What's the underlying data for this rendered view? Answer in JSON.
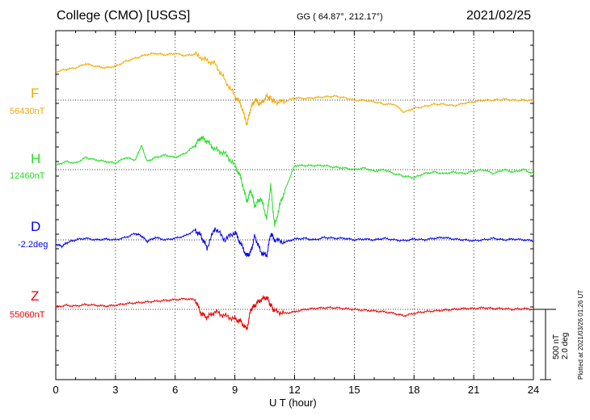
{
  "header": {
    "station": "College (CMO)  [USGS]",
    "coords": "GG ( 64.87°, 212.17°)",
    "date": "2021/02/25"
  },
  "footer": {
    "plotted": "Plotted at 2021/03/26 01:26 UT",
    "scale_nt": "500 nT",
    "scale_deg": "2.0 deg"
  },
  "chart_data": {
    "type": "line",
    "title": "College (CMO)  [USGS]",
    "xlabel": "U T (hour)",
    "ylabel": "",
    "xlim": [
      0,
      24
    ],
    "x_ticks": [
      "0",
      "3",
      "6",
      "9",
      "12",
      "15",
      "18",
      "21",
      "24"
    ],
    "grid": true,
    "series": [
      {
        "name": "F",
        "baseline_label": "56430nT",
        "color": "#f5a800",
        "x": [
          0,
          0.5,
          1,
          1.5,
          2,
          2.5,
          3,
          3.5,
          4,
          4.5,
          5,
          5.5,
          6,
          6.5,
          7,
          7.5,
          8,
          8.5,
          9,
          9.3,
          9.6,
          9.8,
          10,
          10.3,
          10.6,
          10.8,
          11,
          11.5,
          12,
          12.5,
          13,
          13.5,
          14,
          14.5,
          15,
          15.5,
          16,
          16.5,
          17,
          17.5,
          18,
          18.5,
          19,
          19.5,
          20,
          20.5,
          21,
          21.5,
          22,
          22.5,
          23,
          23.5,
          24
        ],
        "y": [
          35,
          38,
          40,
          45,
          42,
          40,
          42,
          48,
          52,
          56,
          58,
          56,
          58,
          55,
          57,
          50,
          45,
          25,
          5,
          -5,
          -30,
          -10,
          0,
          -5,
          5,
          2,
          -2,
          -2,
          3,
          2,
          3,
          4,
          5,
          3,
          0,
          0,
          -2,
          -5,
          -5,
          -15,
          -10,
          -8,
          -5,
          -5,
          -7,
          -4,
          -2,
          0,
          0,
          1,
          0,
          0,
          0
        ]
      },
      {
        "name": "H",
        "baseline_label": "12460nT",
        "color": "#22dd22",
        "x": [
          0,
          0.5,
          1,
          1.5,
          2,
          2.5,
          3,
          3.5,
          4,
          4.3,
          4.6,
          5,
          5.5,
          6,
          6.5,
          7,
          7.3,
          7.6,
          8,
          8.5,
          9,
          9.3,
          9.6,
          9.8,
          10,
          10.3,
          10.6,
          10.8,
          11,
          11.3,
          11.6,
          12,
          12.5,
          13,
          13.5,
          14,
          14.5,
          15,
          15.5,
          16,
          16.5,
          17,
          17.5,
          18,
          18.5,
          19,
          19.5,
          20,
          20.5,
          21,
          21.5,
          22,
          22.5,
          23,
          23.5,
          24
        ],
        "y": [
          5,
          10,
          8,
          15,
          12,
          10,
          8,
          15,
          12,
          30,
          10,
          15,
          18,
          15,
          20,
          30,
          40,
          35,
          25,
          20,
          5,
          -10,
          -40,
          -25,
          -45,
          -35,
          -60,
          -20,
          -70,
          -40,
          -20,
          5,
          5,
          5,
          5,
          3,
          2,
          0,
          2,
          -2,
          0,
          -5,
          -8,
          -10,
          -5,
          -3,
          -5,
          -3,
          -5,
          -2,
          0,
          -5,
          0,
          -3,
          0,
          -5
        ]
      },
      {
        "name": "D",
        "baseline_label": "-2.2deg",
        "color": "#0000ee",
        "x": [
          0,
          0.3,
          0.6,
          1,
          1.5,
          2,
          2.5,
          3,
          3.5,
          4,
          4.3,
          4.6,
          5,
          5.5,
          6,
          6.5,
          7,
          7.3,
          7.6,
          8,
          8.5,
          9,
          9.3,
          9.6,
          9.8,
          10,
          10.3,
          10.6,
          10.8,
          11,
          11.5,
          12,
          12.5,
          13,
          13.5,
          14,
          14.5,
          15,
          15.5,
          16,
          16.5,
          17,
          17.5,
          18,
          18.5,
          19,
          19.5,
          20,
          20.5,
          21,
          21.5,
          22,
          22.5,
          23,
          23.5,
          24
        ],
        "y": [
          -5,
          -8,
          -3,
          0,
          2,
          0,
          1,
          0,
          3,
          8,
          5,
          -2,
          3,
          0,
          2,
          5,
          12,
          5,
          -10,
          15,
          0,
          10,
          -5,
          -20,
          -15,
          5,
          -15,
          -20,
          8,
          0,
          -3,
          1,
          2,
          0,
          3,
          2,
          2,
          0,
          1,
          0,
          2,
          0,
          -1,
          1,
          0,
          2,
          3,
          1,
          0,
          -1,
          0,
          2,
          0,
          1,
          0,
          -1
        ]
      },
      {
        "name": "Z",
        "baseline_label": "55060nT",
        "color": "#ee0000",
        "x": [
          0,
          0.5,
          1,
          1.5,
          2,
          2.5,
          3,
          3.5,
          4,
          4.5,
          5,
          5.5,
          6,
          6.5,
          7,
          7.3,
          7.6,
          8,
          8.5,
          9,
          9.3,
          9.6,
          9.8,
          10,
          10.3,
          10.6,
          10.8,
          11,
          11.5,
          12,
          12.5,
          13,
          13.5,
          14,
          14.5,
          15,
          15.5,
          16,
          16.5,
          17,
          17.5,
          18,
          18.5,
          19,
          19.5,
          20,
          20.5,
          21,
          21.5,
          22,
          22.5,
          23,
          23.5,
          24
        ],
        "y": [
          3,
          5,
          4,
          6,
          5,
          4,
          5,
          7,
          8,
          9,
          10,
          11,
          12,
          13,
          12,
          -5,
          -10,
          -3,
          -8,
          -12,
          -15,
          -25,
          0,
          5,
          12,
          15,
          5,
          -2,
          -5,
          -3,
          0,
          1,
          2,
          2,
          1,
          0,
          -1,
          -2,
          -3,
          -5,
          -8,
          -5,
          -3,
          -2,
          -1,
          0,
          1,
          1,
          2,
          1,
          1,
          0,
          1,
          0
        ]
      }
    ]
  }
}
